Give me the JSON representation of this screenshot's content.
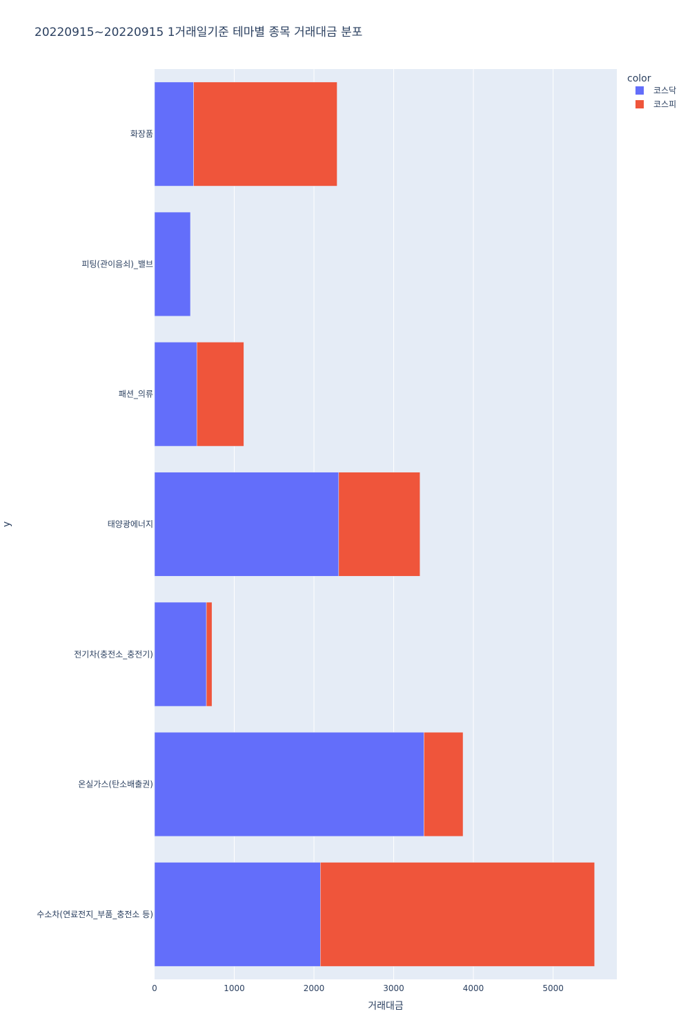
{
  "chart_data": {
    "type": "bar",
    "orientation": "horizontal",
    "barmode": "stack",
    "title": "20220915~20220915 1거래일기준 테마별 종목 거래대금 분포",
    "xlabel": "거래대금",
    "ylabel": "y",
    "xlim": [
      0,
      5800
    ],
    "xticks": [
      0,
      1000,
      2000,
      3000,
      4000,
      5000
    ],
    "grid": true,
    "legend_title": "color",
    "legend_position": "top-right",
    "categories": [
      "수소차(연료전지_부품_충전소 등)",
      "온실가스(탄소배출권)",
      "전기차(충전소_충전기)",
      "태양광에너지",
      "패션_의류",
      "피팅(관이음쇠)_밸브",
      "화장품"
    ],
    "series": [
      {
        "name": "코스닥",
        "color": "#636efa",
        "values": [
          2080,
          3380,
          650,
          2310,
          530,
          450,
          490
        ]
      },
      {
        "name": "코스피",
        "color": "#ef553b",
        "values": [
          3440,
          490,
          70,
          1020,
          590,
          0,
          1800
        ]
      }
    ]
  }
}
